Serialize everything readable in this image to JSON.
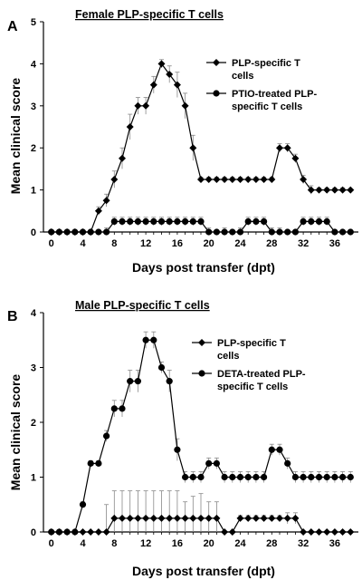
{
  "chart_data": [
    {
      "type": "line",
      "panel_label": "A",
      "title": "Female PLP-specific T cells",
      "xlabel": "Days post transfer (dpt)",
      "ylabel": "Mean clinical score",
      "xlim": [
        -1,
        39
      ],
      "ylim": [
        0,
        5
      ],
      "xticks": [
        0,
        4,
        8,
        12,
        16,
        20,
        24,
        28,
        32,
        36
      ],
      "yticks": [
        0,
        1,
        2,
        3,
        4,
        5
      ],
      "legend_position": "top-right",
      "x": [
        0,
        1,
        2,
        3,
        4,
        5,
        6,
        7,
        8,
        9,
        10,
        11,
        12,
        13,
        14,
        15,
        16,
        17,
        18,
        19,
        20,
        21,
        22,
        23,
        24,
        25,
        26,
        27,
        28,
        29,
        30,
        31,
        32,
        33,
        34,
        35,
        36,
        37,
        38
      ],
      "series": [
        {
          "name": "PLP-specific T cells",
          "legend_lines": [
            "PLP-specific T",
            "cells"
          ],
          "marker": "diamond",
          "values": [
            0,
            0,
            0,
            0,
            0,
            0,
            0.5,
            0.75,
            1.25,
            1.75,
            2.5,
            3,
            3,
            3.5,
            4,
            3.75,
            3.5,
            3,
            2,
            1.25,
            1.25,
            1.25,
            1.25,
            1.25,
            1.25,
            1.25,
            1.25,
            1.25,
            1.25,
            2,
            2,
            1.75,
            1.25,
            1,
            1,
            1,
            1,
            1,
            1
          ],
          "errors": [
            0,
            0,
            0,
            0,
            0,
            0,
            0.1,
            0.15,
            0.2,
            0.25,
            0.3,
            0.2,
            0.2,
            0.2,
            0.1,
            0.2,
            0.3,
            0.3,
            0.3,
            0.05,
            0.05,
            0.05,
            0.05,
            0.05,
            0.05,
            0.05,
            0.05,
            0.05,
            0.05,
            0.1,
            0.1,
            0.1,
            0.1,
            0.1,
            0.05,
            0.05,
            0.05,
            0.05,
            0
          ]
        },
        {
          "name": "PTIO-treated PLP-specific T cells",
          "legend_lines": [
            "PTIO-treated PLP-",
            "specific T cells"
          ],
          "marker": "circle",
          "values": [
            0,
            0,
            0,
            0,
            0,
            0,
            0,
            0,
            0.25,
            0.25,
            0.25,
            0.25,
            0.25,
            0.25,
            0.25,
            0.25,
            0.25,
            0.25,
            0.25,
            0.25,
            0,
            0,
            0,
            0,
            0,
            0.25,
            0.25,
            0.25,
            0,
            0,
            0,
            0,
            0.25,
            0.25,
            0.25,
            0.25,
            0,
            0,
            0
          ],
          "errors": [
            0,
            0,
            0,
            0,
            0,
            0,
            0,
            0.1,
            0.1,
            0.1,
            0.1,
            0.1,
            0.1,
            0.1,
            0.1,
            0.1,
            0.1,
            0.1,
            0.1,
            0.1,
            0.1,
            0,
            0.1,
            0,
            0.1,
            0.1,
            0.1,
            0.1,
            0.1,
            0.1,
            0,
            0,
            0.1,
            0.1,
            0.1,
            0.1,
            0,
            0,
            0
          ]
        }
      ]
    },
    {
      "type": "line",
      "panel_label": "B",
      "title": "Male PLP-specific T cells",
      "xlabel": "Days post transfer (dpt)",
      "ylabel": "Mean clinical score",
      "xlim": [
        -1,
        39
      ],
      "ylim": [
        0,
        4
      ],
      "xticks": [
        0,
        4,
        8,
        12,
        16,
        20,
        24,
        28,
        32,
        36
      ],
      "yticks": [
        0,
        1,
        2,
        3,
        4
      ],
      "legend_position": "top-right",
      "x": [
        0,
        1,
        2,
        3,
        4,
        5,
        6,
        7,
        8,
        9,
        10,
        11,
        12,
        13,
        14,
        15,
        16,
        17,
        18,
        19,
        20,
        21,
        22,
        23,
        24,
        25,
        26,
        27,
        28,
        29,
        30,
        31,
        32,
        33,
        34,
        35,
        36,
        37,
        38
      ],
      "series": [
        {
          "name": "PLP-specific T cells",
          "legend_lines": [
            "PLP-specific T",
            "cells"
          ],
          "marker": "diamond",
          "values": [
            0,
            0,
            0,
            0,
            0,
            0,
            0,
            0,
            0.25,
            0.25,
            0.25,
            0.25,
            0.25,
            0.25,
            0.25,
            0.25,
            0.25,
            0.25,
            0.25,
            0.25,
            0.25,
            0.25,
            0,
            0,
            0.25,
            0.25,
            0.25,
            0.25,
            0.25,
            0.25,
            0.25,
            0.25,
            0,
            0,
            0,
            0,
            0,
            0,
            0
          ],
          "errors": [
            0,
            0,
            0,
            0,
            0,
            0,
            0,
            0.5,
            0.5,
            0.5,
            0.5,
            0.5,
            0.5,
            0.5,
            0.5,
            0.5,
            0.5,
            0.3,
            0.4,
            0.45,
            0.3,
            0.3,
            0,
            0,
            0.05,
            0.05,
            0.05,
            0.05,
            0.05,
            0.05,
            0.1,
            0.1,
            0,
            0,
            0,
            0,
            0,
            0,
            0
          ]
        },
        {
          "name": "DETA-treated PLP-specific T cells",
          "legend_lines": [
            "DETA-treated PLP-",
            "specific T cells"
          ],
          "marker": "circle",
          "values": [
            0,
            0,
            0,
            0,
            0.5,
            1.25,
            1.25,
            1.75,
            2.25,
            2.25,
            2.75,
            2.75,
            3.5,
            3.5,
            3,
            2.75,
            1.5,
            1,
            1,
            1,
            1.25,
            1.25,
            1,
            1,
            1,
            1,
            1,
            1,
            1.5,
            1.5,
            1.25,
            1,
            1,
            1,
            1,
            1,
            1,
            1,
            1
          ],
          "errors": [
            0,
            0,
            0,
            0,
            0.05,
            0.05,
            0.05,
            0.1,
            0.15,
            0.15,
            0.2,
            0.2,
            0.15,
            0.15,
            0.1,
            0.2,
            0.2,
            0.1,
            0.1,
            0.1,
            0.1,
            0.1,
            0.1,
            0.1,
            0.1,
            0.1,
            0.1,
            0.1,
            0.1,
            0.1,
            0.1,
            0.1,
            0.1,
            0.1,
            0.1,
            0.1,
            0.1,
            0.1,
            0.1
          ]
        }
      ]
    }
  ]
}
